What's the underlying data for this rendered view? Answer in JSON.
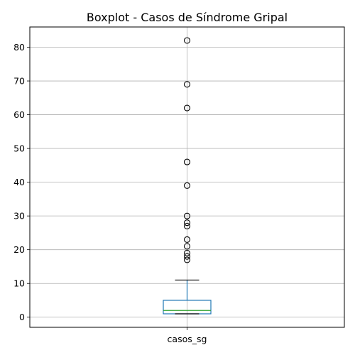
{
  "chart_data": {
    "type": "boxplot",
    "title": "Boxplot - Casos de Síndrome Gripal",
    "categories": [
      "casos_sg"
    ],
    "ylim": [
      -3,
      86
    ],
    "y_ticks": [
      0,
      10,
      20,
      30,
      40,
      50,
      60,
      70,
      80
    ],
    "grid": true,
    "box": {
      "whisker_low": 1,
      "q1": 1,
      "median": 2,
      "q3": 5,
      "whisker_high": 11
    },
    "outliers": [
      17,
      18,
      19,
      21,
      23,
      27,
      28,
      30,
      39,
      46,
      62,
      69,
      82
    ],
    "colors": {
      "box": "#1f77b4",
      "median": "#2ca02c",
      "whisker": "#1f77b4",
      "cap": "#000000",
      "grid": "#b0b0b0"
    }
  }
}
